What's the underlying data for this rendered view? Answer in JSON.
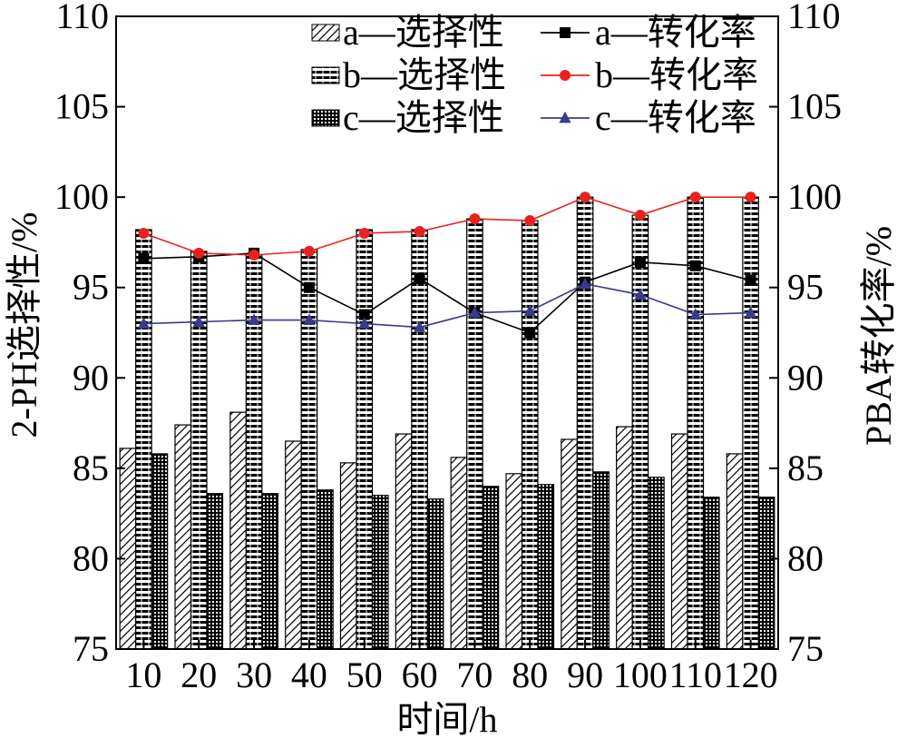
{
  "chart_data": {
    "type": "bar",
    "categories": [
      "10",
      "20",
      "30",
      "40",
      "50",
      "60",
      "70",
      "80",
      "90",
      "100",
      "110",
      "120"
    ],
    "xlabel": "时间/h",
    "ylabel": "2-PH选择性/%",
    "ylabel_right": "PBA转化率/%",
    "ylim": [
      75,
      110
    ],
    "ylim_right": [
      75,
      110
    ],
    "yticks": [
      75,
      80,
      85,
      90,
      95,
      100,
      105,
      110
    ],
    "grid": false,
    "legend_position": "top",
    "bar_series": [
      {
        "name": "a—选择性",
        "pattern": "diagonal",
        "values": [
          86.1,
          87.4,
          88.1,
          86.5,
          85.3,
          86.9,
          85.6,
          84.7,
          86.6,
          87.3,
          86.9,
          85.8
        ]
      },
      {
        "name": "b—选择性",
        "pattern": "horizontal",
        "values": [
          98.2,
          97.0,
          96.8,
          97.1,
          98.2,
          98.2,
          98.8,
          98.7,
          100.0,
          99.0,
          100.0,
          100.0
        ]
      },
      {
        "name": "c—选择性",
        "pattern": "grid",
        "values": [
          85.8,
          83.6,
          83.6,
          83.8,
          83.5,
          83.3,
          84.0,
          84.1,
          84.8,
          84.5,
          83.4,
          83.4
        ]
      }
    ],
    "line_series": [
      {
        "name": "a—转化率",
        "color": "#000000",
        "marker": "square",
        "values": [
          96.6,
          96.7,
          96.9,
          95.0,
          93.5,
          95.5,
          93.6,
          92.5,
          95.3,
          96.4,
          96.2,
          95.4
        ]
      },
      {
        "name": "b—转化率",
        "color": "#e8231f",
        "marker": "circle",
        "values": [
          98.0,
          96.9,
          96.8,
          97.0,
          98.0,
          98.1,
          98.8,
          98.7,
          100.0,
          99.0,
          100.0,
          100.0
        ]
      },
      {
        "name": "c—转化率",
        "color": "#3a3a8c",
        "marker": "triangle",
        "values": [
          93.0,
          93.1,
          93.2,
          93.2,
          93.0,
          92.8,
          93.6,
          93.7,
          95.2,
          94.6,
          93.5,
          93.6
        ]
      }
    ]
  }
}
